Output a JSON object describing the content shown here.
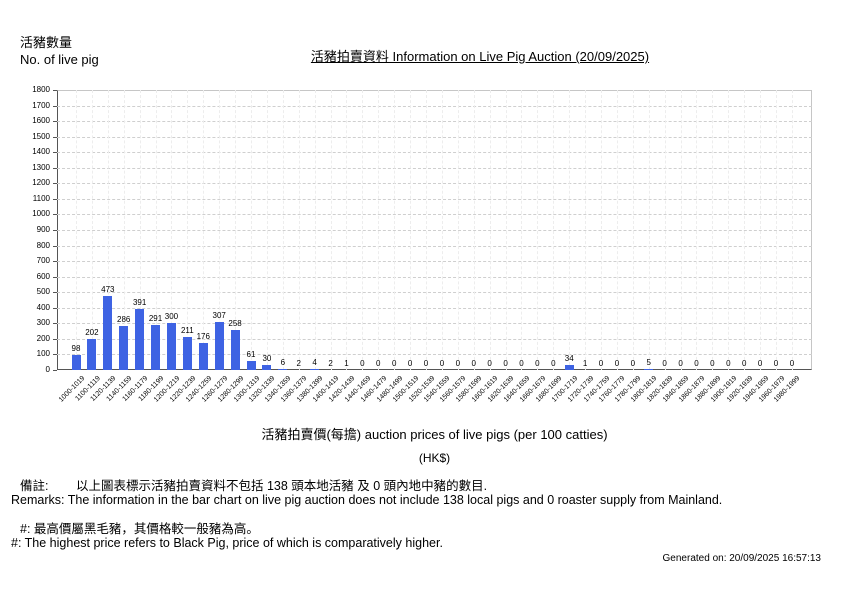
{
  "header": {
    "ylabel_cn": "活豬數量",
    "ylabel_en": "No. of live pig"
  },
  "title": "活豬拍賣資料 Information on Live Pig Auction (20/09/2025)",
  "xaxis": {
    "title": "活豬拍賣價(每擔) auction prices of live pigs (per 100 catties)",
    "unit": "(HK$)"
  },
  "remarks": {
    "cn_label": "備註:",
    "cn_text": "以上圖表標示活豬拍賣資料不包括 138 頭本地活豬 及 0 頭內地中豬的數目.",
    "en": "Remarks: The information in the bar chart on live pig auction does not include 138 local pigs and 0 roaster supply from Mainland.",
    "note_cn": "#: 最高價屬黑毛豬，其價格較一般豬為高。",
    "note_en": "#: The highest price refers to Black Pig, price of which is comparatively higher."
  },
  "footer": {
    "generated": "Generated on: 20/09/2025 16:57:13"
  },
  "chart_data": {
    "type": "bar",
    "title": "活豬拍賣資料 Information on Live Pig Auction (20/09/2025)",
    "xlabel": "活豬拍賣價(每擔) auction prices of live pigs (per 100 catties) (HK$)",
    "ylabel": "活豬數量 No. of live pig",
    "ylim": [
      0,
      1800
    ],
    "ytick_step": 100,
    "grid": true,
    "legend": "none",
    "bar_color": "#3e63e3",
    "categories": [
      "1000-1019",
      "1100-1119",
      "1120-1139",
      "1140-1159",
      "1160-1179",
      "1180-1199",
      "1200-1219",
      "1220-1239",
      "1240-1259",
      "1260-1279",
      "1280-1299",
      "1300-1319",
      "1320-1339",
      "1340-1359",
      "1360-1379",
      "1380-1399",
      "1400-1419",
      "1420-1439",
      "1440-1459",
      "1460-1479",
      "1480-1499",
      "1500-1519",
      "1520-1539",
      "1540-1559",
      "1560-1579",
      "1580-1599",
      "1600-1619",
      "1620-1639",
      "1640-1659",
      "1660-1679",
      "1680-1699",
      "1700-1719",
      "1720-1739",
      "1740-1759",
      "1760-1779",
      "1780-1799",
      "1800-1819",
      "1820-1839",
      "1840-1859",
      "1860-1879",
      "1880-1899",
      "1900-1919",
      "1920-1939",
      "1940-1959",
      "1960-1979",
      "1980-1999"
    ],
    "values": [
      98,
      202,
      473,
      286,
      391,
      291,
      300,
      211,
      176,
      307,
      258,
      61,
      30,
      6,
      2,
      4,
      2,
      1,
      0,
      0,
      0,
      0,
      0,
      0,
      0,
      0,
      0,
      0,
      0,
      0,
      0,
      34,
      1,
      0,
      0,
      0,
      5,
      0,
      0,
      0,
      0,
      0,
      0,
      0,
      0,
      0
    ]
  }
}
